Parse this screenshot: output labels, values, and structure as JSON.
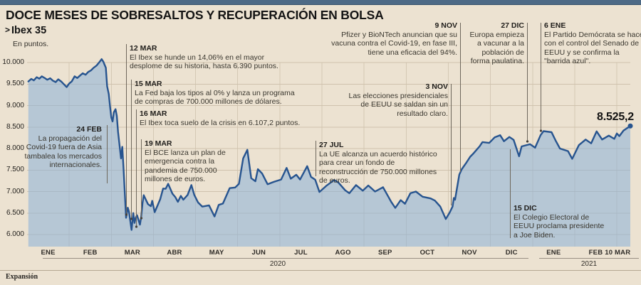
{
  "header": {
    "title": "DOCE MESES DE SOBRESALTOS Y RECUPERACIÓN EN BOLSA",
    "series_marker": ">",
    "series_name": "Ibex 35",
    "units": "En puntos."
  },
  "footer": {
    "source": "Expansión"
  },
  "colors": {
    "background": "#ece2d1",
    "top_bar": "#4d6a86",
    "line": "#27548f",
    "area_fill": "rgba(139,176,216,0.55)",
    "grid": "#cfc2ad"
  },
  "chart_data": {
    "type": "area",
    "title": "DOCE MESES DE SOBRESALTOS Y RECUPERACIÓN EN BOLSA",
    "series_name": "Ibex 35",
    "units": "En puntos.",
    "x_unit": "months_since_2020-01-01",
    "grid": true,
    "last_label": "8.525,2",
    "last_value": 8525.2,
    "last_date": "10 MAR 2021",
    "y_axis": {
      "min": 6000,
      "max": 10000,
      "ticks": [
        {
          "label": "10.000",
          "value": 10000
        },
        {
          "label": "9.500",
          "value": 9500
        },
        {
          "label": "9.000",
          "value": 9000
        },
        {
          "label": "8.500",
          "value": 8500
        },
        {
          "label": "8.000",
          "value": 8000
        },
        {
          "label": "7.500",
          "value": 7500
        },
        {
          "label": "7.000",
          "value": 7000
        },
        {
          "label": "6.500",
          "value": 6500
        },
        {
          "label": "6.000",
          "value": 6000
        }
      ]
    },
    "x_axis": {
      "months": [
        {
          "label": "ENE",
          "t": 0.5
        },
        {
          "label": "FEB",
          "t": 1.5
        },
        {
          "label": "MAR",
          "t": 2.5
        },
        {
          "label": "ABR",
          "t": 3.5
        },
        {
          "label": "MAY",
          "t": 4.5
        },
        {
          "label": "JUN",
          "t": 5.5
        },
        {
          "label": "JUL",
          "t": 6.5
        },
        {
          "label": "AGO",
          "t": 7.5
        },
        {
          "label": "SEP",
          "t": 8.5
        },
        {
          "label": "OCT",
          "t": 9.5
        },
        {
          "label": "NOV",
          "t": 10.5
        },
        {
          "label": "DIC",
          "t": 11.5
        },
        {
          "label": "ENE",
          "t": 12.5
        },
        {
          "label": "FEB",
          "t": 13.5
        },
        {
          "label": "10 MAR",
          "t": 14.02
        }
      ],
      "year_groups": [
        {
          "label": "2020"
        },
        {
          "label": "2021"
        }
      ]
    },
    "series": [
      {
        "name": "Ibex 35",
        "color": "#27548f",
        "fill": "rgba(139,176,216,0.55)",
        "points": [
          [
            0.03,
            9560
          ],
          [
            0.1,
            9620
          ],
          [
            0.16,
            9585
          ],
          [
            0.23,
            9660
          ],
          [
            0.29,
            9625
          ],
          [
            0.35,
            9680
          ],
          [
            0.42,
            9640
          ],
          [
            0.48,
            9600
          ],
          [
            0.55,
            9635
          ],
          [
            0.61,
            9580
          ],
          [
            0.68,
            9545
          ],
          [
            0.74,
            9610
          ],
          [
            0.81,
            9560
          ],
          [
            0.87,
            9500
          ],
          [
            0.94,
            9430
          ],
          [
            1.0,
            9510
          ],
          [
            1.06,
            9560
          ],
          [
            1.13,
            9680
          ],
          [
            1.19,
            9640
          ],
          [
            1.26,
            9700
          ],
          [
            1.32,
            9750
          ],
          [
            1.39,
            9715
          ],
          [
            1.45,
            9780
          ],
          [
            1.52,
            9820
          ],
          [
            1.58,
            9880
          ],
          [
            1.65,
            9930
          ],
          [
            1.71,
            10000
          ],
          [
            1.77,
            10080
          ],
          [
            1.81,
            10020
          ],
          [
            1.84,
            9950
          ],
          [
            1.87,
            9880
          ],
          [
            1.9,
            9450
          ],
          [
            1.94,
            9270
          ],
          [
            1.97,
            8980
          ],
          [
            2.0,
            8720
          ],
          [
            2.03,
            8630
          ],
          [
            2.06,
            8840
          ],
          [
            2.1,
            8915
          ],
          [
            2.13,
            8760
          ],
          [
            2.16,
            8380
          ],
          [
            2.23,
            7770
          ],
          [
            2.26,
            8040
          ],
          [
            2.29,
            7550
          ],
          [
            2.35,
            6390
          ],
          [
            2.39,
            6625
          ],
          [
            2.42,
            6530
          ],
          [
            2.48,
            6107.2
          ],
          [
            2.52,
            6500
          ],
          [
            2.55,
            6270
          ],
          [
            2.58,
            6390
          ],
          [
            2.61,
            6450
          ],
          [
            2.68,
            6230
          ],
          [
            2.71,
            6420
          ],
          [
            2.74,
            6730
          ],
          [
            2.77,
            6915
          ],
          [
            2.81,
            6830
          ],
          [
            2.87,
            6706
          ],
          [
            2.94,
            6660
          ],
          [
            2.97,
            6785
          ],
          [
            3.03,
            6520
          ],
          [
            3.1,
            6685
          ],
          [
            3.16,
            6820
          ],
          [
            3.23,
            7070
          ],
          [
            3.29,
            7065
          ],
          [
            3.35,
            7180
          ],
          [
            3.45,
            6950
          ],
          [
            3.52,
            6870
          ],
          [
            3.58,
            6760
          ],
          [
            3.65,
            6900
          ],
          [
            3.71,
            6810
          ],
          [
            3.81,
            6920
          ],
          [
            3.9,
            7150
          ],
          [
            3.97,
            6920
          ],
          [
            4.06,
            6745
          ],
          [
            4.16,
            6650
          ],
          [
            4.32,
            6680
          ],
          [
            4.45,
            6420
          ],
          [
            4.55,
            6690
          ],
          [
            4.65,
            6720
          ],
          [
            4.81,
            7080
          ],
          [
            4.94,
            7095
          ],
          [
            5.03,
            7180
          ],
          [
            5.13,
            7770
          ],
          [
            5.23,
            7970
          ],
          [
            5.32,
            7310
          ],
          [
            5.42,
            7240
          ],
          [
            5.48,
            7520
          ],
          [
            5.58,
            7420
          ],
          [
            5.71,
            7170
          ],
          [
            5.87,
            7230
          ],
          [
            6.03,
            7280
          ],
          [
            6.16,
            7550
          ],
          [
            6.26,
            7300
          ],
          [
            6.39,
            7390
          ],
          [
            6.48,
            7280
          ],
          [
            6.65,
            7590
          ],
          [
            6.74,
            7340
          ],
          [
            6.84,
            7275
          ],
          [
            6.94,
            6990
          ],
          [
            7.1,
            7130
          ],
          [
            7.29,
            7270
          ],
          [
            7.39,
            7210
          ],
          [
            7.55,
            7030
          ],
          [
            7.65,
            6960
          ],
          [
            7.81,
            7150
          ],
          [
            7.97,
            7020
          ],
          [
            8.1,
            7140
          ],
          [
            8.26,
            7000
          ],
          [
            8.45,
            7100
          ],
          [
            8.65,
            6750
          ],
          [
            8.74,
            6620
          ],
          [
            8.87,
            6800
          ],
          [
            8.97,
            6715
          ],
          [
            9.1,
            6960
          ],
          [
            9.23,
            7000
          ],
          [
            9.39,
            6880
          ],
          [
            9.58,
            6840
          ],
          [
            9.68,
            6790
          ],
          [
            9.81,
            6650
          ],
          [
            9.94,
            6360
          ],
          [
            10.03,
            6510
          ],
          [
            10.1,
            6650
          ],
          [
            10.13,
            6850
          ],
          [
            10.16,
            6810
          ],
          [
            10.26,
            7395
          ],
          [
            10.32,
            7520
          ],
          [
            10.42,
            7660
          ],
          [
            10.52,
            7810
          ],
          [
            10.58,
            7870
          ],
          [
            10.74,
            8050
          ],
          [
            10.81,
            8150
          ],
          [
            10.97,
            8130
          ],
          [
            11.1,
            8260
          ],
          [
            11.23,
            8310
          ],
          [
            11.32,
            8170
          ],
          [
            11.45,
            8270
          ],
          [
            11.55,
            8200
          ],
          [
            11.68,
            7820
          ],
          [
            11.74,
            8050
          ],
          [
            11.94,
            8100
          ],
          [
            12.06,
            8020
          ],
          [
            12.19,
            8310
          ],
          [
            12.26,
            8405
          ],
          [
            12.45,
            8380
          ],
          [
            12.55,
            8180
          ],
          [
            12.65,
            8000
          ],
          [
            12.84,
            7940
          ],
          [
            12.94,
            7760
          ],
          [
            13.1,
            8080
          ],
          [
            13.26,
            8210
          ],
          [
            13.39,
            8120
          ],
          [
            13.52,
            8400
          ],
          [
            13.65,
            8210
          ],
          [
            13.81,
            8300
          ],
          [
            13.94,
            8225
          ],
          [
            14.0,
            8350
          ],
          [
            14.06,
            8290
          ],
          [
            14.16,
            8420
          ],
          [
            14.32,
            8525.2
          ]
        ]
      }
    ],
    "annotations": [
      {
        "date": "24 FEB",
        "text": "La propagación del Covid-19 fuera de Asia tambalea los mercados internacionales."
      },
      {
        "date": "12 MAR",
        "text": "El Ibex se hunde un 14,06% en el mayor desplome de su historia, hasta 6.390 puntos."
      },
      {
        "date": "15 MAR",
        "text": "La Fed baja los tipos al 0% y lanza un programa de compras de 700.000 millones de dólares."
      },
      {
        "date": "16 MAR",
        "text": "El Ibex toca suelo de la crisis en 6.107,2 puntos."
      },
      {
        "date": "19 MAR",
        "text": "El BCE lanza un plan de emergencia contra la pandemia de 750.000 millones de euros."
      },
      {
        "date": "27 JUL",
        "text": "La UE alcanza un acuerdo histórico para crear un fondo de reconstrucción de 750.000 millones de euros."
      },
      {
        "date": "3 NOV",
        "text": "Las elecciones presidenciales de EEUU se saldan sin un resultado claro."
      },
      {
        "date": "9 NOV",
        "text": "Pfizer y BioNTech anuncian que su vacuna contra el Covid-19, en fase III, tiene una eficacia del 94%."
      },
      {
        "date": "27 DIC",
        "text": "Europa empieza a vacunar a la población de forma paulatina."
      },
      {
        "date": "6 ENE",
        "text": "El Partido Demócrata se hace con el control del Senado de EEUU y se confirma la \"barrida azul\"."
      },
      {
        "date": "15 DIC",
        "text": "El Colegio Electoral de EEUU proclama presidente a Joe Biden."
      }
    ]
  }
}
